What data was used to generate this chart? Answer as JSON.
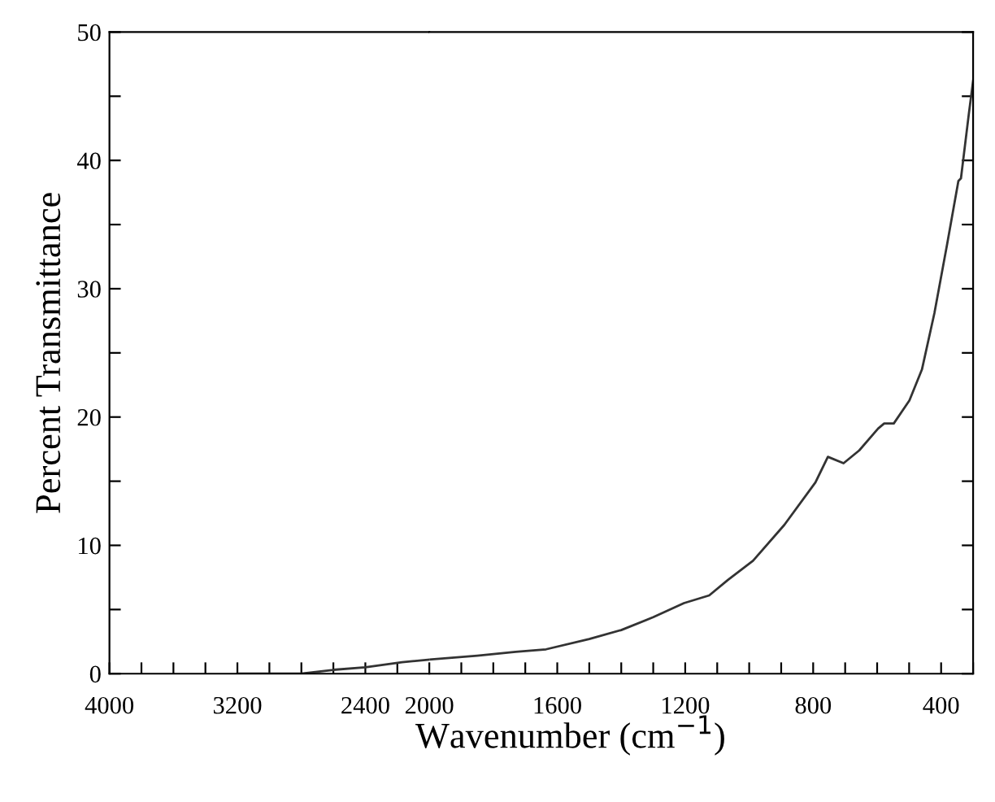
{
  "chart_data": [
    {
      "type": "line",
      "ylabel": "Percent Transmittance",
      "x": [
        3200,
        2800,
        2600,
        2400,
        2170,
        2000
      ],
      "series": [
        {
          "color": "#333333",
          "values": [
            0,
            0,
            0.3,
            0.5,
            0.9,
            1.1
          ]
        }
      ],
      "xlim": [
        4000,
        2000
      ],
      "xticks": [
        4000,
        {
          "value": 3800,
          "label": null
        },
        {
          "value": 3600,
          "label": null
        },
        {
          "value": 3400,
          "label": null
        },
        3200,
        {
          "value": 3000,
          "label": null
        },
        {
          "value": 2800,
          "label": null
        },
        {
          "value": 2600,
          "label": null
        },
        2400,
        {
          "value": 2200,
          "label": null
        }
      ],
      "ylim": [
        0,
        50
      ],
      "yticks": [
        0,
        {
          "value": 5,
          "label": null
        },
        10,
        {
          "value": 15,
          "label": null
        },
        20,
        {
          "value": 25,
          "label": null
        },
        30,
        {
          "value": 35,
          "label": null
        },
        40,
        {
          "value": 45,
          "label": null
        },
        50
      ],
      "marker": "none",
      "line_style": "solid"
    },
    {
      "type": "line",
      "xlabel": "Wavenumber (cm$^{−1}$)",
      "x": [
        2000,
        1850,
        1730,
        1635,
        1500,
        1400,
        1300,
        1204,
        1125,
        1067,
        988,
        890,
        793,
        754,
        705,
        656,
        597,
        578,
        548,
        499,
        460,
        421,
        381,
        346,
        338,
        313,
        300
      ],
      "series": [
        {
          "color": "#333333",
          "values": [
            1.1,
            1.4,
            1.7,
            1.9,
            2.7,
            3.4,
            4.4,
            5.5,
            6.1,
            7.3,
            8.8,
            11.6,
            14.9,
            16.9,
            16.4,
            17.4,
            19.1,
            19.5,
            19.5,
            21.3,
            23.7,
            28.1,
            33.5,
            38.4,
            38.6,
            43.7,
            46.2
          ]
        }
      ],
      "xlim": [
        2000,
        300
      ],
      "xticks": [
        2000,
        {
          "value": 1900,
          "label": null
        },
        {
          "value": 1800,
          "label": null
        },
        {
          "value": 1700,
          "label": null
        },
        1600,
        {
          "value": 1500,
          "label": null
        },
        {
          "value": 1400,
          "label": null
        },
        {
          "value": 1300,
          "label": null
        },
        1200,
        {
          "value": 1100,
          "label": null
        },
        {
          "value": 1000,
          "label": null
        },
        {
          "value": 900,
          "label": null
        },
        800,
        {
          "value": 700,
          "label": null
        },
        {
          "value": 600,
          "label": null
        },
        {
          "value": 500,
          "label": null
        },
        400,
        {
          "value": 300,
          "label": null
        }
      ],
      "ylim": [
        0,
        50
      ],
      "yticks": [
        0,
        {
          "value": 5,
          "label": null
        },
        10,
        {
          "value": 15,
          "label": null
        },
        20,
        {
          "value": 25,
          "label": null
        },
        30,
        {
          "value": 35,
          "label": null
        },
        40,
        {
          "value": 45,
          "label": null
        },
        50
      ],
      "tick_labels": "x",
      "marker": "none",
      "line_style": "solid"
    }
  ]
}
